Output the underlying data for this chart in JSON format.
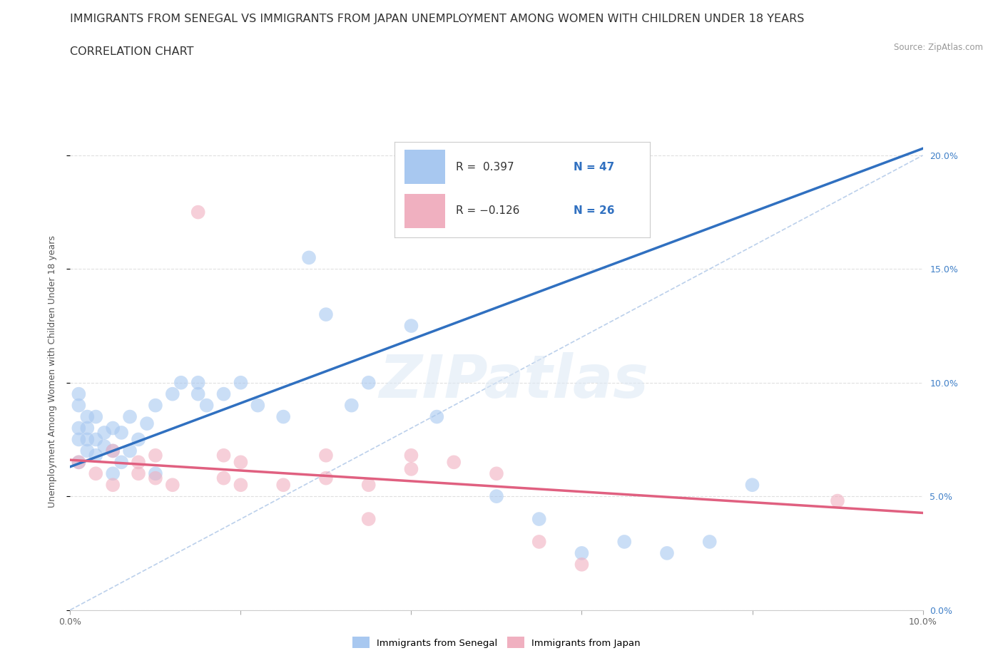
{
  "title_line1": "IMMIGRANTS FROM SENEGAL VS IMMIGRANTS FROM JAPAN UNEMPLOYMENT AMONG WOMEN WITH CHILDREN UNDER 18 YEARS",
  "title_line2": "CORRELATION CHART",
  "source_text": "Source: ZipAtlas.com",
  "ylabel": "Unemployment Among Women with Children Under 18 years",
  "xlim": [
    0.0,
    0.1
  ],
  "ylim": [
    0.0,
    0.21
  ],
  "watermark": "ZIPatlas",
  "R_senegal": 0.397,
  "N_senegal": 47,
  "R_japan": -0.126,
  "N_japan": 26,
  "color_senegal": "#a8c8f0",
  "color_japan": "#f0b0c0",
  "color_senegal_line": "#3070c0",
  "color_japan_line": "#e06080",
  "color_diag": "#a8c8f0",
  "background_color": "#ffffff",
  "grid_color": "#e0e0e0",
  "title_fontsize": 11.5,
  "label_fontsize": 9,
  "tick_fontsize": 9,
  "senegal_x": [
    0.001,
    0.001,
    0.001,
    0.001,
    0.001,
    0.002,
    0.002,
    0.002,
    0.002,
    0.003,
    0.003,
    0.003,
    0.004,
    0.004,
    0.005,
    0.005,
    0.005,
    0.006,
    0.006,
    0.007,
    0.007,
    0.008,
    0.009,
    0.01,
    0.01,
    0.012,
    0.013,
    0.015,
    0.015,
    0.016,
    0.018,
    0.02,
    0.022,
    0.025,
    0.028,
    0.03,
    0.033,
    0.035,
    0.04,
    0.043,
    0.05,
    0.055,
    0.06,
    0.065,
    0.07,
    0.075,
    0.08
  ],
  "senegal_y": [
    0.065,
    0.075,
    0.08,
    0.09,
    0.095,
    0.07,
    0.075,
    0.08,
    0.085,
    0.068,
    0.075,
    0.085,
    0.072,
    0.078,
    0.06,
    0.07,
    0.08,
    0.065,
    0.078,
    0.07,
    0.085,
    0.075,
    0.082,
    0.06,
    0.09,
    0.095,
    0.1,
    0.095,
    0.1,
    0.09,
    0.095,
    0.1,
    0.09,
    0.085,
    0.155,
    0.13,
    0.09,
    0.1,
    0.125,
    0.085,
    0.05,
    0.04,
    0.025,
    0.03,
    0.025,
    0.03,
    0.055
  ],
  "japan_x": [
    0.001,
    0.003,
    0.005,
    0.005,
    0.008,
    0.008,
    0.01,
    0.01,
    0.012,
    0.015,
    0.018,
    0.018,
    0.02,
    0.02,
    0.025,
    0.03,
    0.03,
    0.035,
    0.035,
    0.04,
    0.04,
    0.045,
    0.05,
    0.055,
    0.06,
    0.09
  ],
  "japan_y": [
    0.065,
    0.06,
    0.055,
    0.07,
    0.06,
    0.065,
    0.058,
    0.068,
    0.055,
    0.175,
    0.058,
    0.068,
    0.055,
    0.065,
    0.055,
    0.058,
    0.068,
    0.04,
    0.055,
    0.062,
    0.068,
    0.065,
    0.06,
    0.03,
    0.02,
    0.048
  ]
}
